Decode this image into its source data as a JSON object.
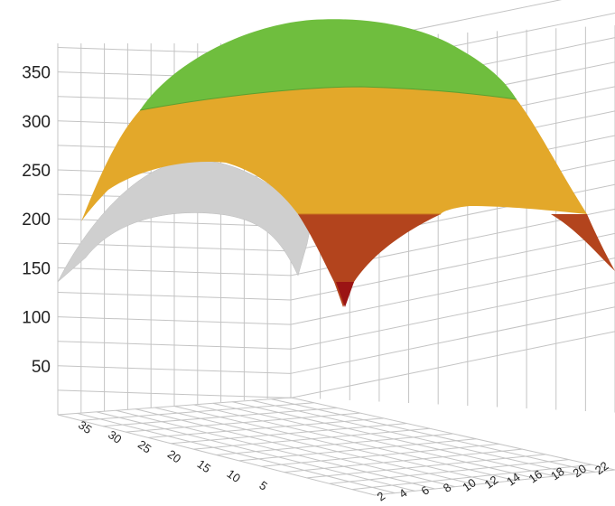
{
  "chart_data": {
    "type": "surface",
    "title": "",
    "xlabel": "",
    "ylabel": "",
    "zlabel": "",
    "z_axis": {
      "ticks": [
        "50",
        "100",
        "150",
        "200",
        "250",
        "300",
        "350"
      ],
      "range": [
        0,
        375
      ]
    },
    "left_floor_axis": {
      "ticks": [
        "5",
        "10",
        "15",
        "20",
        "25",
        "30",
        "35"
      ],
      "range": [
        0,
        38
      ]
    },
    "right_floor_axis": {
      "ticks": [
        "2",
        "4",
        "6",
        "8",
        "10",
        "12",
        "14",
        "16",
        "18",
        "20",
        "22"
      ],
      "range": [
        0,
        23
      ]
    },
    "grid": true,
    "surface": {
      "description_free_levels": true,
      "z_at_rows": [
        {
          "left_axis": 36,
          "z": [
            130,
            240,
            300,
            320,
            310,
            250,
            150
          ]
        },
        {
          "left_axis": 25,
          "z": [
            200,
            290,
            350,
            370,
            355,
            300,
            200
          ]
        },
        {
          "left_axis": 15,
          "z": [
            220,
            300,
            360,
            375,
            360,
            300,
            210
          ]
        },
        {
          "left_axis": 5,
          "z": [
            150,
            250,
            320,
            340,
            320,
            260,
            150
          ]
        },
        {
          "left_axis": 1,
          "z": [
            110,
            200,
            280,
            300,
            280,
            210,
            120
          ]
        }
      ],
      "color_bands": [
        {
          "from": 0,
          "to": 120,
          "color": "#9b1414"
        },
        {
          "from": 120,
          "to": 200,
          "color": "#b5451e"
        },
        {
          "from": 200,
          "to": 330,
          "color": "#e0a82a"
        },
        {
          "from": 330,
          "to": 400,
          "color": "#6fbe3e"
        }
      ],
      "rear_sheet_color": "#cfcfcf"
    }
  }
}
